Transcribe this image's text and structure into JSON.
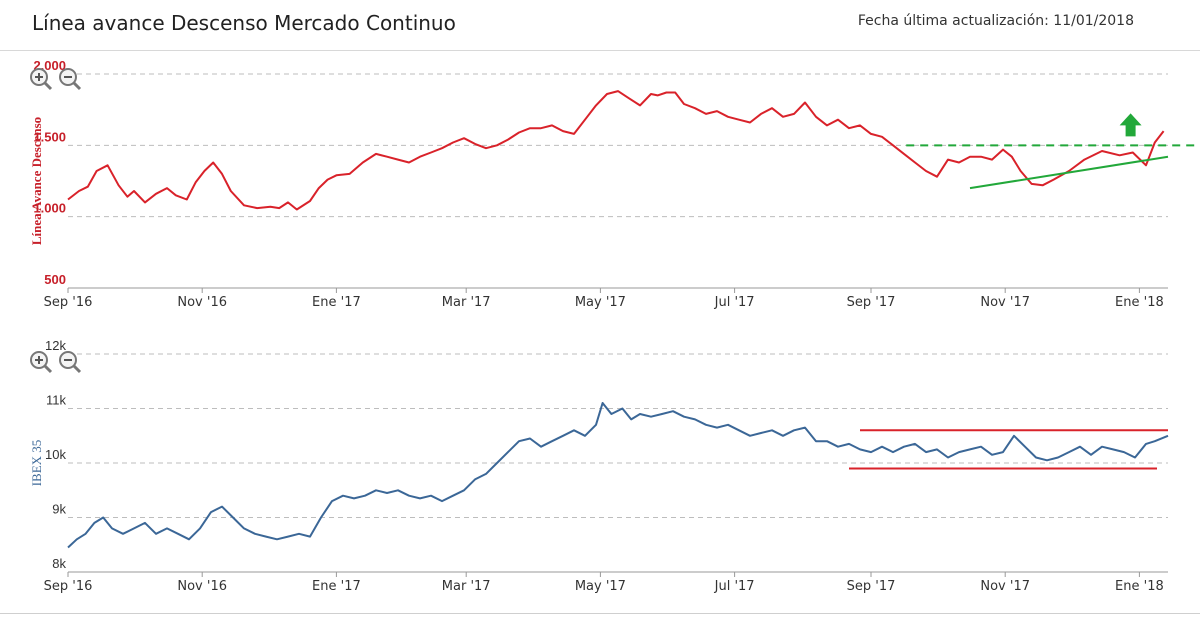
{
  "header": {
    "title": "Línea avance Descenso Mercado Continuo",
    "updated": "Fecha última actualización: 11/01/2018"
  },
  "colors": {
    "upper_series": "#d9222a",
    "lower_series": "#3b6797",
    "trendline": "#22a83a",
    "support_resistance": "#d9222a",
    "grid": "#bdbdbd"
  },
  "chart_data": [
    {
      "type": "line",
      "ylabel": "Línea Avance Descenso",
      "ylim": [
        500,
        2000
      ],
      "yticks": [
        500,
        1000,
        1500,
        2000
      ],
      "ytick_labels": [
        "500",
        "1.000",
        "1.500",
        "2.000"
      ],
      "grid": true,
      "xrange_days": [
        0,
        500
      ],
      "xticks": [
        "Sep '16",
        "Nov '16",
        "Ene '17",
        "Mar '17",
        "May '17",
        "Jul '17",
        "Sep '17",
        "Nov '17",
        "Ene '18"
      ],
      "xtick_days": [
        0,
        61,
        122,
        181,
        242,
        303,
        365,
        426,
        487
      ],
      "series": [
        {
          "x": [
            0,
            5,
            9,
            13,
            18,
            23,
            27,
            30,
            35,
            40,
            45,
            49,
            54,
            58,
            62,
            66,
            70,
            74,
            80,
            86,
            92,
            96,
            100,
            104,
            110,
            114,
            118,
            122,
            128,
            134,
            140,
            145,
            150,
            155,
            160,
            165,
            170,
            175,
            180,
            185,
            190,
            195,
            200,
            205,
            210,
            215,
            220,
            225,
            230,
            236,
            240,
            245,
            250,
            255,
            260,
            265,
            268,
            272,
            276,
            280,
            285,
            290,
            295,
            300,
            305,
            310,
            315,
            320,
            325,
            330,
            335,
            340,
            345,
            350,
            355,
            360,
            365,
            370,
            375,
            380,
            385,
            390,
            395,
            400,
            405,
            410,
            415,
            420,
            425,
            429,
            433,
            438,
            443,
            448,
            455,
            462,
            470,
            478,
            484,
            490,
            494,
            498
          ],
          "y": [
            1120,
            1180,
            1210,
            1320,
            1360,
            1220,
            1140,
            1180,
            1100,
            1160,
            1200,
            1150,
            1120,
            1240,
            1320,
            1380,
            1300,
            1180,
            1080,
            1060,
            1070,
            1060,
            1100,
            1050,
            1110,
            1200,
            1260,
            1290,
            1300,
            1380,
            1440,
            1420,
            1400,
            1380,
            1420,
            1450,
            1480,
            1520,
            1550,
            1510,
            1480,
            1500,
            1540,
            1590,
            1620,
            1620,
            1640,
            1600,
            1580,
            1700,
            1780,
            1860,
            1880,
            1830,
            1780,
            1860,
            1850,
            1870,
            1870,
            1790,
            1760,
            1720,
            1740,
            1700,
            1680,
            1660,
            1720,
            1760,
            1700,
            1720,
            1800,
            1700,
            1640,
            1680,
            1620,
            1640,
            1580,
            1560,
            1500,
            1440,
            1380,
            1320,
            1280,
            1400,
            1380,
            1420,
            1420,
            1400,
            1470,
            1420,
            1320,
            1230,
            1220,
            1260,
            1320,
            1400,
            1460,
            1430,
            1450,
            1360,
            1520,
            1600
          ]
        }
      ],
      "annotations": {
        "resistance_level": 1500,
        "trendline": {
          "x": [
            410,
            500
          ],
          "y": [
            1200,
            1420
          ]
        },
        "arrow": {
          "x": 483,
          "y": 1640,
          "direction": "up"
        }
      }
    },
    {
      "type": "line",
      "ylabel": "IBEX 35",
      "ylim": [
        8000,
        12000
      ],
      "yticks": [
        8000,
        9000,
        10000,
        11000,
        12000
      ],
      "ytick_labels": [
        "8k",
        "9k",
        "10k",
        "11k",
        "12k"
      ],
      "grid": true,
      "xrange_days": [
        0,
        500
      ],
      "xticks": [
        "Sep '16",
        "Nov '16",
        "Ene '17",
        "Mar '17",
        "May '17",
        "Jul '17",
        "Sep '17",
        "Nov '17",
        "Ene '18"
      ],
      "xtick_days": [
        0,
        61,
        122,
        181,
        242,
        303,
        365,
        426,
        487
      ],
      "series": [
        {
          "x": [
            0,
            4,
            8,
            12,
            16,
            20,
            25,
            30,
            35,
            40,
            45,
            50,
            55,
            60,
            65,
            70,
            75,
            80,
            85,
            90,
            95,
            100,
            105,
            110,
            115,
            120,
            125,
            130,
            135,
            140,
            145,
            150,
            155,
            160,
            165,
            170,
            175,
            180,
            185,
            190,
            195,
            200,
            205,
            210,
            215,
            220,
            225,
            230,
            235,
            240,
            243,
            247,
            252,
            256,
            260,
            265,
            270,
            275,
            280,
            285,
            290,
            295,
            300,
            305,
            310,
            315,
            320,
            325,
            330,
            335,
            340,
            345,
            350,
            355,
            360,
            365,
            370,
            375,
            380,
            385,
            390,
            395,
            400,
            405,
            410,
            415,
            420,
            425,
            430,
            435,
            440,
            445,
            450,
            455,
            460,
            465,
            470,
            475,
            480,
            485,
            490,
            494,
            500
          ],
          "y": [
            8450,
            8600,
            8700,
            8900,
            9000,
            8800,
            8700,
            8800,
            8900,
            8700,
            8800,
            8700,
            8600,
            8800,
            9100,
            9200,
            9000,
            8800,
            8700,
            8650,
            8600,
            8650,
            8700,
            8650,
            9000,
            9300,
            9400,
            9350,
            9400,
            9500,
            9450,
            9500,
            9400,
            9350,
            9400,
            9300,
            9400,
            9500,
            9700,
            9800,
            10000,
            10200,
            10400,
            10450,
            10300,
            10400,
            10500,
            10600,
            10500,
            10700,
            11100,
            10900,
            11000,
            10800,
            10900,
            10850,
            10900,
            10950,
            10850,
            10800,
            10700,
            10650,
            10700,
            10600,
            10500,
            10550,
            10600,
            10500,
            10600,
            10650,
            10400,
            10400,
            10300,
            10350,
            10250,
            10200,
            10300,
            10200,
            10300,
            10350,
            10200,
            10250,
            10100,
            10200,
            10250,
            10300,
            10150,
            10200,
            10500,
            10300,
            10100,
            10050,
            10100,
            10200,
            10300,
            10150,
            10300,
            10250,
            10200,
            10100,
            10350,
            10400,
            10500
          ]
        }
      ],
      "annotations": {
        "resistance_level": 10600,
        "resistance_x": [
          360,
          500
        ],
        "support_level": 9900,
        "support_x": [
          355,
          495
        ]
      }
    }
  ]
}
